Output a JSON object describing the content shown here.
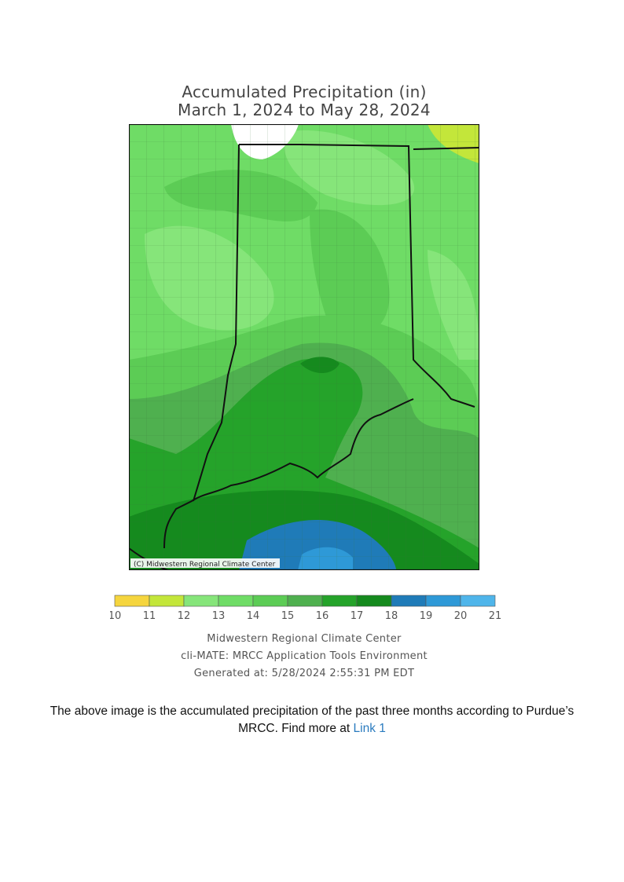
{
  "map": {
    "title_line1": "Accumulated Precipitation (in)",
    "title_line2": "March 1, 2024 to May 28, 2024",
    "copyright": "(C) Midwestern Regional Climate Center",
    "legend": {
      "ticks": [
        "10",
        "11",
        "12",
        "13",
        "14",
        "15",
        "16",
        "17",
        "18",
        "19",
        "20",
        "21"
      ],
      "colors": [
        "#f5d53e",
        "#c3e63a",
        "#86e57a",
        "#6fdc66",
        "#5ccc55",
        "#4fb04f",
        "#25a32a",
        "#158a1e",
        "#1f7bb8",
        "#2e99d7",
        "#4fb5ea",
        "#a9d8f5"
      ]
    },
    "credits": [
      "Midwestern Regional Climate Center",
      "cli-MATE: MRCC Application Tools Environment",
      "Generated at: 5/28/2024 2:55:31 PM EDT"
    ]
  },
  "caption": {
    "text_before": "The above image is the accumulated precipitation of the past three months according to Purdue’s MRCC. Find more at ",
    "link_text": "Link 1"
  }
}
